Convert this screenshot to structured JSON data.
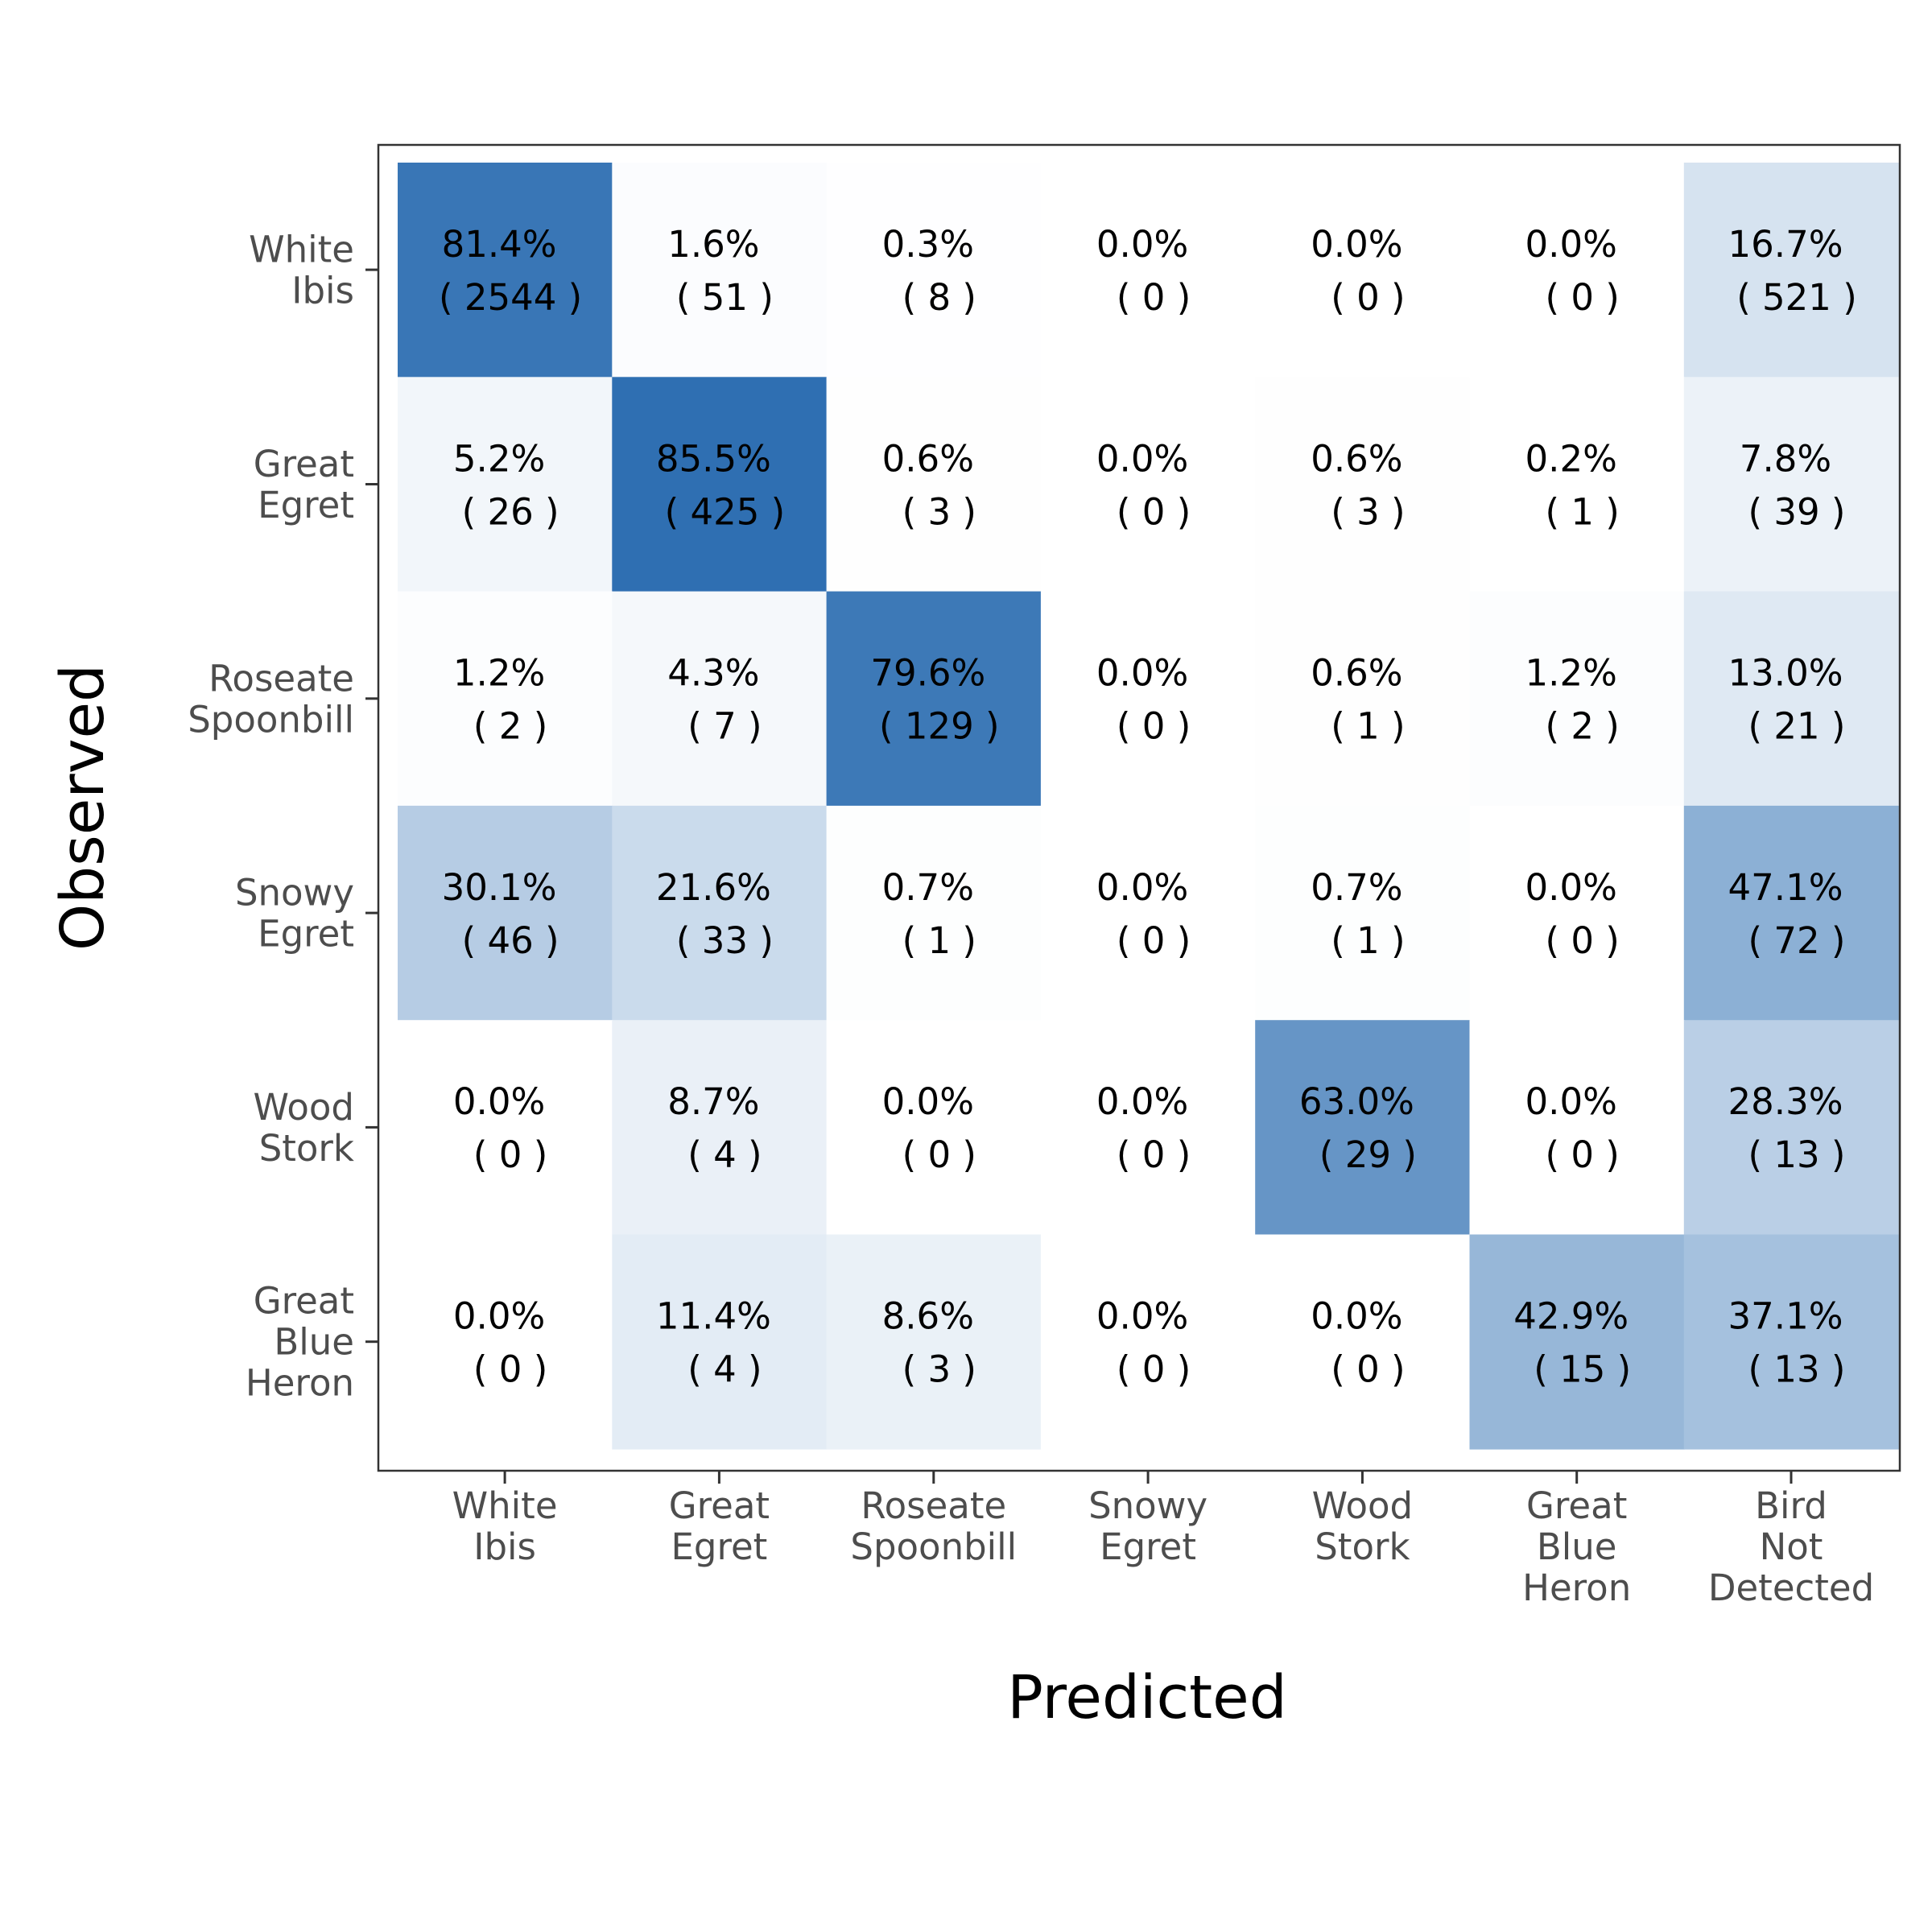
{
  "chart_data": {
    "type": "heatmap",
    "xlabel": "Predicted",
    "ylabel": "Observed",
    "x_categories": [
      [
        "White",
        "Ibis"
      ],
      [
        "Great",
        "Egret"
      ],
      [
        "Roseate",
        "Spoonbill"
      ],
      [
        "Snowy",
        "Egret"
      ],
      [
        "Wood",
        "Stork"
      ],
      [
        "Great",
        "Blue",
        "Heron"
      ],
      [
        "Bird",
        "Not",
        "Detected"
      ]
    ],
    "y_categories": [
      [
        "White",
        "Ibis"
      ],
      [
        "Great",
        "Egret"
      ],
      [
        "Roseate",
        "Spoonbill"
      ],
      [
        "Snowy",
        "Egret"
      ],
      [
        "Wood",
        "Stork"
      ],
      [
        "Great",
        "Blue",
        "Heron"
      ]
    ],
    "percent_labels": [
      [
        "81.4%",
        "1.6%",
        "0.3%",
        "0.0%",
        "0.0%",
        "0.0%",
        "16.7%"
      ],
      [
        "5.2%",
        "85.5%",
        "0.6%",
        "0.0%",
        "0.6%",
        "0.2%",
        "7.8%"
      ],
      [
        "1.2%",
        "4.3%",
        "79.6%",
        "0.0%",
        "0.6%",
        "1.2%",
        "13.0%"
      ],
      [
        "30.1%",
        "21.6%",
        "0.7%",
        "0.0%",
        "0.7%",
        "0.0%",
        "47.1%"
      ],
      [
        "0.0%",
        "8.7%",
        "0.0%",
        "0.0%",
        "63.0%",
        "0.0%",
        "28.3%"
      ],
      [
        "0.0%",
        "11.4%",
        "8.6%",
        "0.0%",
        "0.0%",
        "42.9%",
        "37.1%"
      ]
    ],
    "count_labels": [
      [
        "( 2544 )",
        "( 51 )",
        "( 8 )",
        "( 0 )",
        "( 0 )",
        "( 0 )",
        "( 521 )"
      ],
      [
        "( 26 )",
        "( 425 )",
        "( 3 )",
        "( 0 )",
        "( 3 )",
        "( 1 )",
        "( 39 )"
      ],
      [
        "( 2 )",
        "( 7 )",
        "( 129 )",
        "( 0 )",
        "( 1 )",
        "( 2 )",
        "( 21 )"
      ],
      [
        "( 46 )",
        "( 33 )",
        "( 1 )",
        "( 0 )",
        "( 1 )",
        "( 0 )",
        "( 72 )"
      ],
      [
        "( 0 )",
        "( 4 )",
        "( 0 )",
        "( 0 )",
        "( 29 )",
        "( 0 )",
        "( 13 )"
      ],
      [
        "( 0 )",
        "( 4 )",
        "( 3 )",
        "( 0 )",
        "( 0 )",
        "( 15 )",
        "( 13 )"
      ]
    ],
    "values_percent": [
      [
        81.4,
        1.6,
        0.3,
        0.0,
        0.0,
        0.0,
        16.7
      ],
      [
        5.2,
        85.5,
        0.6,
        0.0,
        0.6,
        0.2,
        7.8
      ],
      [
        1.2,
        4.3,
        79.6,
        0.0,
        0.6,
        1.2,
        13.0
      ],
      [
        30.1,
        21.6,
        0.7,
        0.0,
        0.7,
        0.0,
        47.1
      ],
      [
        0.0,
        8.7,
        0.0,
        0.0,
        63.0,
        0.0,
        28.3
      ],
      [
        0.0,
        11.4,
        8.6,
        0.0,
        0.0,
        42.9,
        37.1
      ]
    ],
    "counts": [
      [
        2544,
        51,
        8,
        0,
        0,
        0,
        521
      ],
      [
        26,
        425,
        3,
        0,
        3,
        1,
        39
      ],
      [
        2,
        7,
        129,
        0,
        1,
        2,
        21
      ],
      [
        46,
        33,
        1,
        0,
        1,
        0,
        72
      ],
      [
        0,
        4,
        0,
        0,
        29,
        0,
        13
      ],
      [
        0,
        4,
        3,
        0,
        0,
        15,
        13
      ]
    ],
    "color_scale": {
      "low": "#ffffff",
      "high": "#2f6fb2"
    },
    "grid": false,
    "legend": "none"
  }
}
